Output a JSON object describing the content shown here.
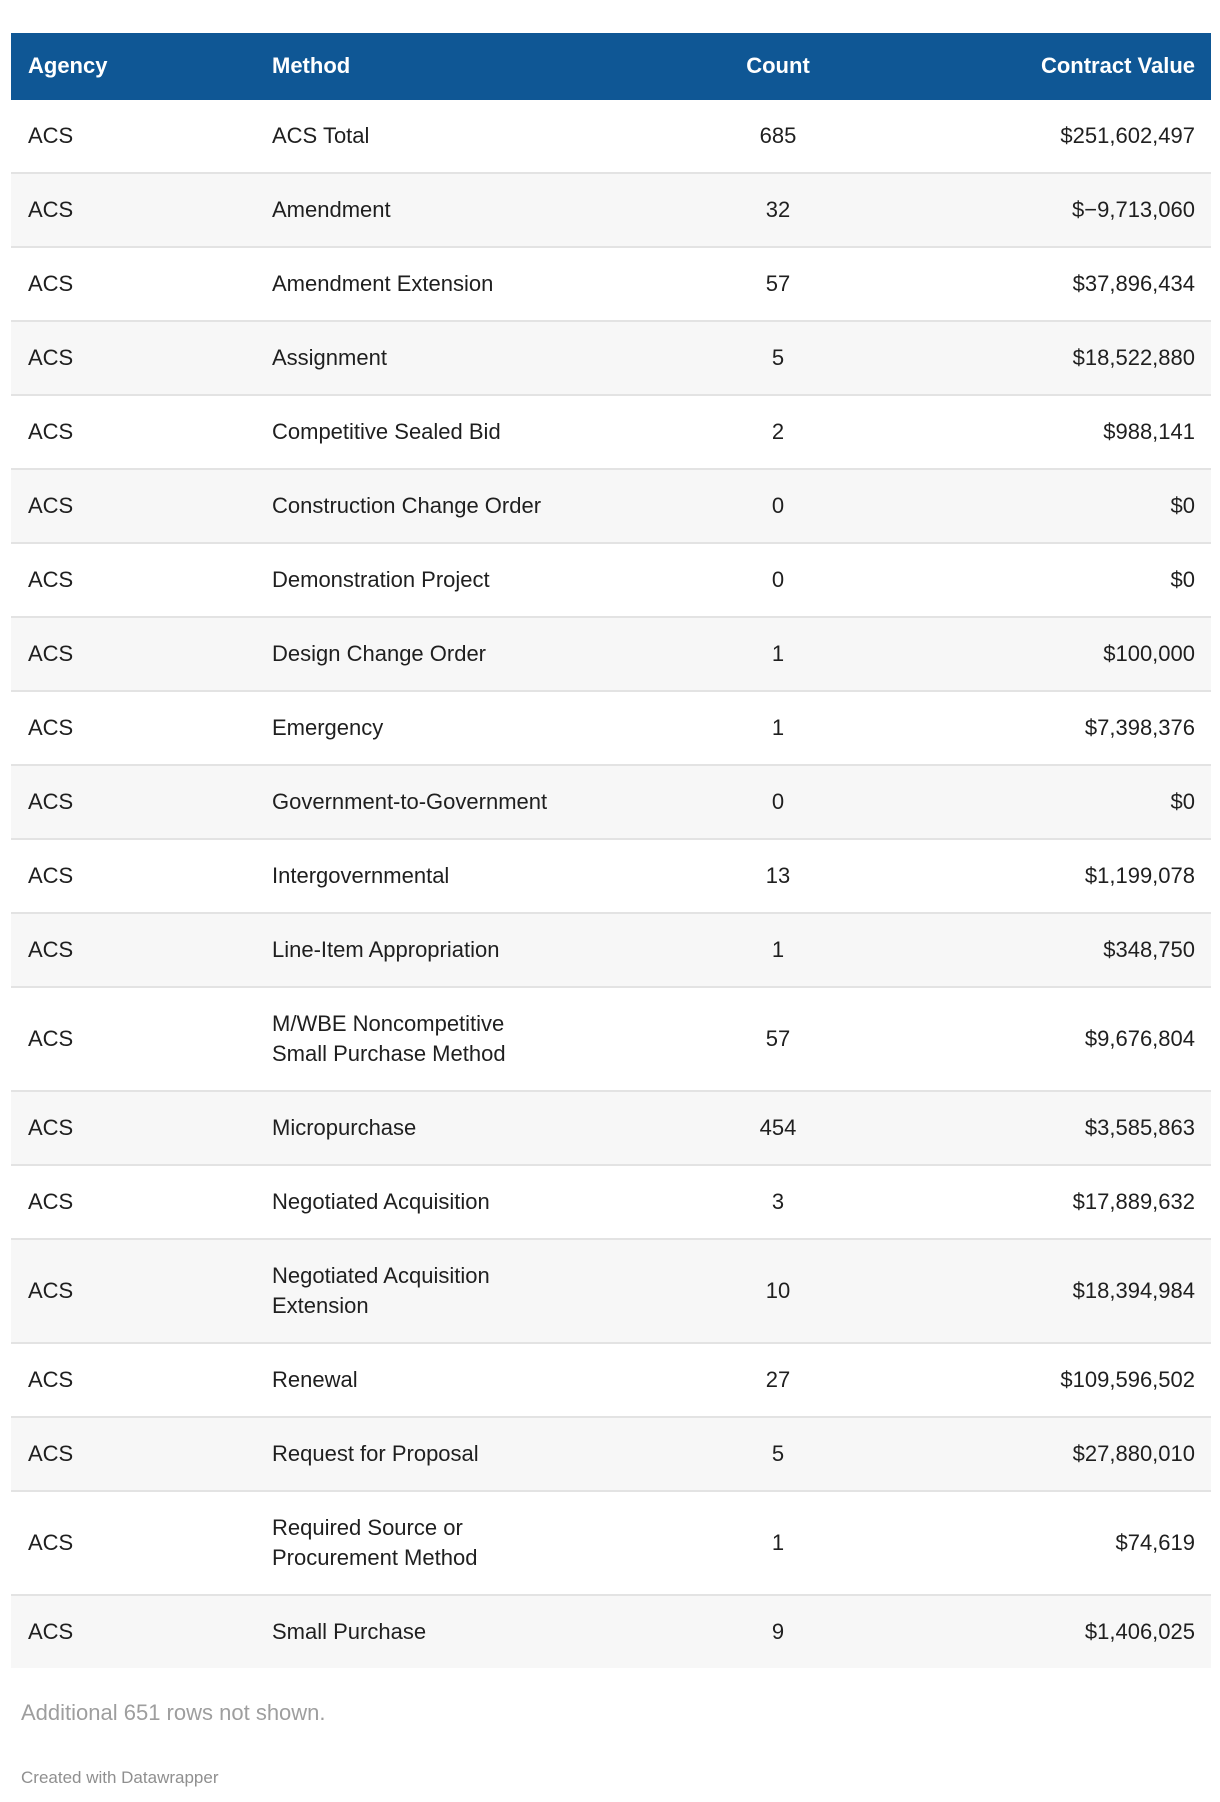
{
  "chart_data": {
    "type": "table",
    "columns": [
      {
        "label": "Agency",
        "align": "left"
      },
      {
        "label": "Method",
        "align": "left"
      },
      {
        "label": "Count",
        "align": "center"
      },
      {
        "label": "Contract Value",
        "align": "right"
      }
    ],
    "rows": [
      {
        "agency": "ACS",
        "method": "ACS Total",
        "count": 685,
        "value": "$251,602,497"
      },
      {
        "agency": "ACS",
        "method": "Amendment",
        "count": 32,
        "value": "$−9,713,060"
      },
      {
        "agency": "ACS",
        "method": "Amendment Extension",
        "count": 57,
        "value": "$37,896,434"
      },
      {
        "agency": "ACS",
        "method": "Assignment",
        "count": 5,
        "value": "$18,522,880"
      },
      {
        "agency": "ACS",
        "method": "Competitive Sealed Bid",
        "count": 2,
        "value": "$988,141"
      },
      {
        "agency": "ACS",
        "method": "Construction Change Order",
        "count": 0,
        "value": "$0"
      },
      {
        "agency": "ACS",
        "method": "Demonstration Project",
        "count": 0,
        "value": "$0"
      },
      {
        "agency": "ACS",
        "method": "Design Change Order",
        "count": 1,
        "value": "$100,000"
      },
      {
        "agency": "ACS",
        "method": "Emergency",
        "count": 1,
        "value": "$7,398,376"
      },
      {
        "agency": "ACS",
        "method": "Government-to-Government",
        "count": 0,
        "value": "$0"
      },
      {
        "agency": "ACS",
        "method": "Intergovernmental",
        "count": 13,
        "value": "$1,199,078"
      },
      {
        "agency": "ACS",
        "method": "Line-Item Appropriation",
        "count": 1,
        "value": "$348,750"
      },
      {
        "agency": "ACS",
        "method": "M/WBE Noncompetitive\nSmall Purchase Method",
        "count": 57,
        "value": "$9,676,804"
      },
      {
        "agency": "ACS",
        "method": "Micropurchase",
        "count": 454,
        "value": "$3,585,863"
      },
      {
        "agency": "ACS",
        "method": "Negotiated Acquisition",
        "count": 3,
        "value": "$17,889,632"
      },
      {
        "agency": "ACS",
        "method": "Negotiated Acquisition\nExtension",
        "count": 10,
        "value": "$18,394,984"
      },
      {
        "agency": "ACS",
        "method": "Renewal",
        "count": 27,
        "value": "$109,596,502"
      },
      {
        "agency": "ACS",
        "method": "Request for Proposal",
        "count": 5,
        "value": "$27,880,010"
      },
      {
        "agency": "ACS",
        "method": "Required Source or\nProcurement Method",
        "count": 1,
        "value": "$74,619"
      },
      {
        "agency": "ACS",
        "method": "Small Purchase",
        "count": 9,
        "value": "$1,406,025"
      }
    ]
  },
  "footer": {
    "note": "Additional 651 rows not shown.",
    "attribution": "Created with Datawrapper"
  },
  "colors": {
    "header_bg": "#0f5795",
    "header_text": "#ffffff",
    "row_alt_bg": "#f7f7f7",
    "row_border": "#e3e3e3",
    "body_text": "#1f1f1f",
    "note_text": "#9e9e9e",
    "attribution_text": "#8f8f8f"
  }
}
